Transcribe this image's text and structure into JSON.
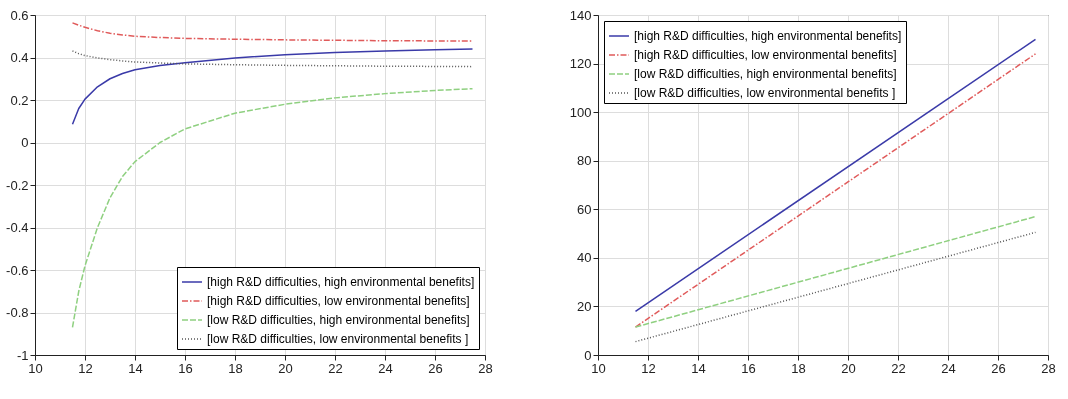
{
  "chart_data": [
    {
      "type": "line",
      "xlim": [
        10,
        28
      ],
      "xticks": [
        10,
        12,
        14,
        16,
        18,
        20,
        22,
        24,
        26,
        28
      ],
      "ylim": [
        -1,
        0.6
      ],
      "yticks": [
        -1,
        -0.8,
        -0.6,
        -0.4,
        -0.2,
        0,
        0.2,
        0.4,
        0.6
      ],
      "grid": true,
      "legend": "bottom right",
      "x": [
        11.5,
        11.75,
        12,
        12.5,
        13,
        13.5,
        14,
        15,
        16,
        18,
        20,
        22,
        24,
        26,
        27.5
      ],
      "series": [
        {
          "name": "[high R&D difficulties, high environmental benefits]",
          "color": "#3a3aa8",
          "line_style": "solid",
          "values": [
            0.086,
            0.16,
            0.204,
            0.262,
            0.3,
            0.325,
            0.342,
            0.362,
            0.375,
            0.398,
            0.413,
            0.423,
            0.431,
            0.436,
            0.44
          ]
        },
        {
          "name": "[high R&D difficulties, low environmental benefits]",
          "color": "#e05a5a",
          "line_style": "dashdot",
          "values": [
            0.563,
            0.552,
            0.542,
            0.526,
            0.514,
            0.506,
            0.5,
            0.494,
            0.49,
            0.486,
            0.483,
            0.481,
            0.479,
            0.478,
            0.478
          ]
        },
        {
          "name": "[low R&D difficulties, high environmental benefits]",
          "color": "#8fd080",
          "line_style": "dashed",
          "values": [
            -0.87,
            -0.7,
            -0.58,
            -0.4,
            -0.26,
            -0.16,
            -0.09,
            0.0,
            0.064,
            0.138,
            0.18,
            0.21,
            0.23,
            0.245,
            0.253
          ]
        },
        {
          "name": "[low R&D difficulties, low environmental benefits ]",
          "color": "#555555",
          "line_style": "dotted",
          "values": [
            0.431,
            0.418,
            0.409,
            0.398,
            0.39,
            0.384,
            0.379,
            0.374,
            0.37,
            0.366,
            0.363,
            0.361,
            0.359,
            0.358,
            0.357
          ]
        }
      ]
    },
    {
      "type": "line",
      "xlim": [
        10,
        28
      ],
      "xticks": [
        10,
        12,
        14,
        16,
        18,
        20,
        22,
        24,
        26,
        28
      ],
      "ylim": [
        0,
        140
      ],
      "yticks": [
        0,
        20,
        40,
        60,
        80,
        100,
        120,
        140
      ],
      "grid": true,
      "legend": "top left",
      "x": [
        11.5,
        27.5
      ],
      "series": [
        {
          "name": "[high R&D difficulties, high environmental benefits]",
          "color": "#3a3aa8",
          "line_style": "solid",
          "values": [
            18,
            130
          ]
        },
        {
          "name": "[high R&D difficulties, low environmental benefits]",
          "color": "#e05a5a",
          "line_style": "dashdot",
          "values": [
            11.5,
            124
          ]
        },
        {
          "name": "[low R&D difficulties, high environmental benefits]",
          "color": "#8fd080",
          "line_style": "dashed",
          "values": [
            11.5,
            57
          ]
        },
        {
          "name": "[low R&D difficulties, low environmental benefits ]",
          "color": "#555555",
          "line_style": "dotted",
          "values": [
            5.5,
            50.5
          ]
        }
      ]
    }
  ]
}
